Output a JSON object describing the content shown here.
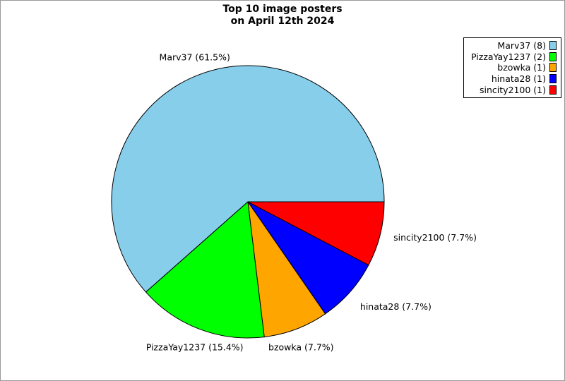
{
  "title": {
    "line1": "Top 10 image posters",
    "line2": "on April 12th 2024"
  },
  "figure": {
    "background": "#FFFFFF",
    "border_color": "#999999"
  },
  "chart_data": {
    "type": "pie",
    "title": "Top 10 image posters\non April 12th 2024",
    "start_angle_deg": 0,
    "direction": "counterclockwise",
    "edge_color": "#000000",
    "legend_position": "upper right",
    "slices": [
      {
        "label": "Marv37",
        "count": 8,
        "percent": 61.5,
        "pie_label": "Marv37 (61.5%)",
        "legend_label": "Marv37 (8)",
        "color": "#87CEEB"
      },
      {
        "label": "PizzaYay1237",
        "count": 2,
        "percent": 15.4,
        "pie_label": "PizzaYay1237 (15.4%)",
        "legend_label": "PizzaYay1237 (2)",
        "color": "#00FF00"
      },
      {
        "label": "bzowka",
        "count": 1,
        "percent": 7.7,
        "pie_label": "bzowka (7.7%)",
        "legend_label": "bzowka (1)",
        "color": "#FFA500"
      },
      {
        "label": "hinata28",
        "count": 1,
        "percent": 7.7,
        "pie_label": "hinata28 (7.7%)",
        "legend_label": "hinata28 (1)",
        "color": "#0000FF"
      },
      {
        "label": "sincity2100",
        "count": 1,
        "percent": 7.7,
        "pie_label": "sincity2100 (7.7%)",
        "legend_label": "sincity2100 (1)",
        "color": "#FF0000"
      }
    ]
  }
}
